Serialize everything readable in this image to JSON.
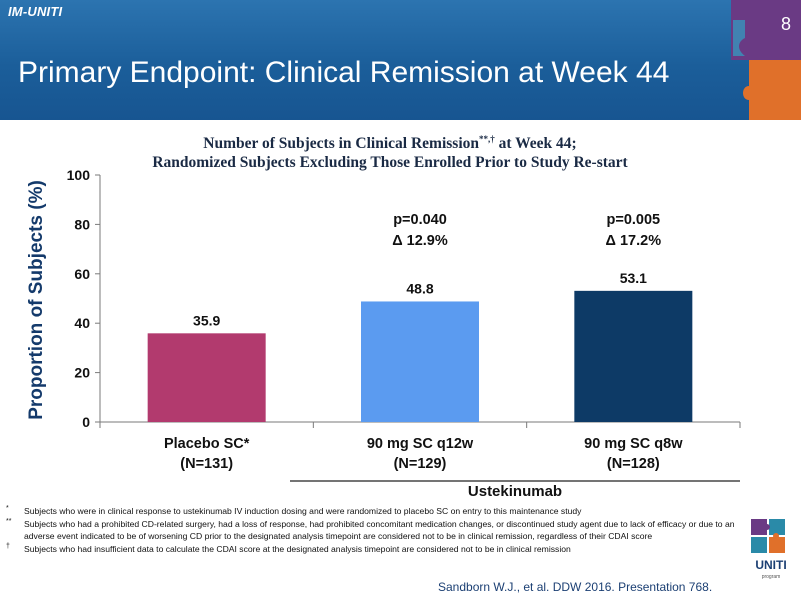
{
  "header": {
    "brand": "IM-UNITI",
    "title": "Primary Endpoint: Clinical Remission at Week 44",
    "page_number": "8"
  },
  "chart_data": {
    "type": "bar",
    "title_line1": "Number of Subjects in Clinical Remission",
    "title_marks": "**,†",
    "title_line1_end": " at Week 44;",
    "title_line2": "Randomized Subjects Excluding Those Enrolled Prior to Study Re-start",
    "ylabel": "Proportion of Subjects (%)",
    "ylim": [
      0,
      100
    ],
    "yticks": [
      0,
      20,
      40,
      60,
      80,
      100
    ],
    "grid": false,
    "categories": [
      {
        "label": "Placebo SC*",
        "n": "(N=131)"
      },
      {
        "label": "90 mg SC q12w",
        "n": "(N=129)"
      },
      {
        "label": "90 mg SC q8w",
        "n": "(N=128)"
      }
    ],
    "values": [
      35.9,
      48.8,
      53.1
    ],
    "value_labels": [
      "35.9",
      "48.8",
      "53.1"
    ],
    "colors": [
      "#b23a6e",
      "#5b9bf0",
      "#0d3a66"
    ],
    "annotations": [
      {
        "bar": 1,
        "p": "p=0.040",
        "delta": "Δ 12.9%"
      },
      {
        "bar": 2,
        "p": "p=0.005",
        "delta": "Δ 17.2%"
      }
    ],
    "group_label": "Ustekinumab"
  },
  "footnotes": [
    {
      "mark": "*",
      "text": "Subjects who were in clinical response to ustekinumab IV induction dosing and were randomized to placebo SC on entry to this maintenance study"
    },
    {
      "mark": "**",
      "text": "Subjects who had a prohibited CD-related surgery, had a loss of response, had prohibited concomitant medication changes, or discontinued study agent due to lack of efficacy or due to an adverse event indicated to be of worsening CD prior to the designated analysis timepoint are considered not to be in clinical remission, regardless of their CDAI score"
    },
    {
      "mark": "†",
      "text": "Subjects who had insufficient data to calculate the CDAI score at the designated analysis timepoint are considered not to be in clinical remission"
    }
  ],
  "citation": "Sandborn W.J., et al. DDW 2016. Presentation 768.",
  "logo": {
    "text": "UNITI",
    "sub": "program"
  },
  "colors": {
    "header": "#1b5e9a",
    "accent_purple": "#6a3a84",
    "accent_orange": "#e0702a",
    "accent_teal": "#2a8aa8"
  }
}
